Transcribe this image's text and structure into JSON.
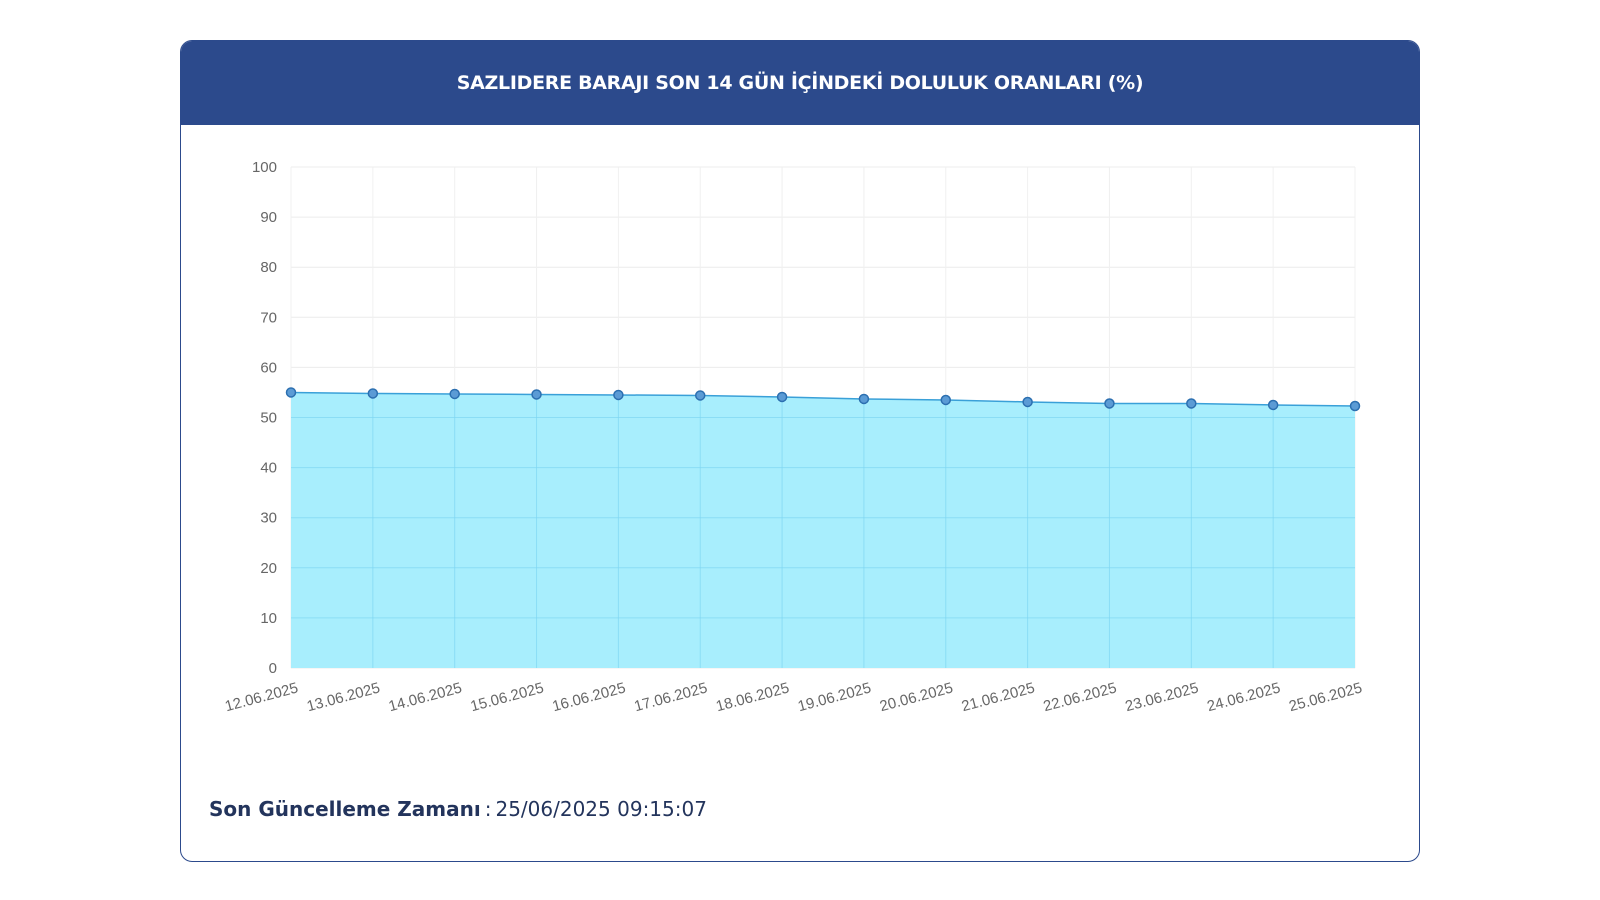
{
  "header": {
    "title": "SAZLIDERE BARAJI SON 14 GÜN İÇİNDEKİ DOLULUK ORANLARI (%)"
  },
  "footer": {
    "label": "Son Güncelleme Zamanı",
    "separator": ":",
    "value": "25/06/2025 09:15:07"
  },
  "colors": {
    "header_bg": "#2c4a8c",
    "area_fill": "#a8eefd",
    "line": "#3aa0d8",
    "point_fill": "#5b9bd5",
    "point_stroke": "#2c6fb0"
  },
  "chart_data": {
    "type": "area",
    "title": "SAZLIDERE BARAJI SON 14 GÜN İÇİNDEKİ DOLULUK ORANLARI (%)",
    "xlabel": "",
    "ylabel": "",
    "ylim": [
      0,
      100
    ],
    "yticks": [
      "0",
      "10",
      "20",
      "30",
      "40",
      "50",
      "60",
      "70",
      "80",
      "90",
      "100"
    ],
    "categories": [
      "12.06.2025",
      "13.06.2025",
      "14.06.2025",
      "15.06.2025",
      "16.06.2025",
      "17.06.2025",
      "18.06.2025",
      "19.06.2025",
      "20.06.2025",
      "21.06.2025",
      "22.06.2025",
      "23.06.2025",
      "24.06.2025",
      "25.06.2025"
    ],
    "series": [
      {
        "values": [
          55.0,
          54.8,
          54.7,
          54.6,
          54.5,
          54.4,
          54.1,
          53.7,
          53.5,
          53.1,
          52.8,
          52.8,
          52.5,
          52.3
        ]
      }
    ],
    "grid": true,
    "legend": "none"
  }
}
